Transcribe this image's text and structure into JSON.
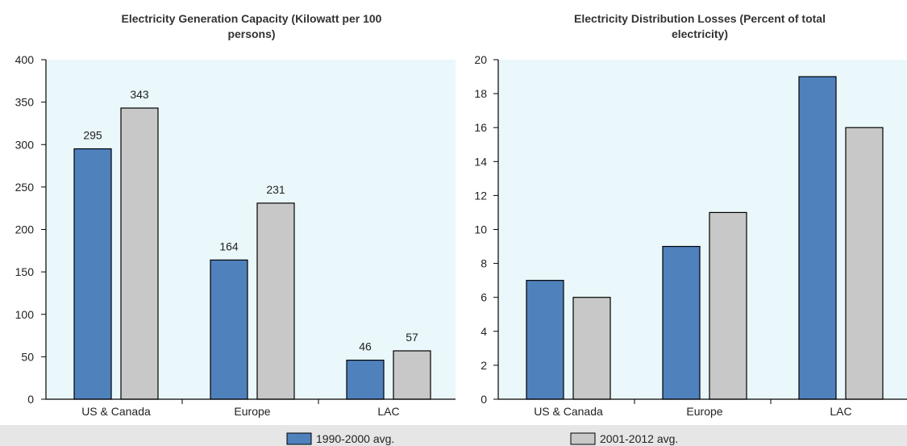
{
  "colors": {
    "series_1": "#4f81bd",
    "series_2": "#c8c8c8",
    "plot_background": "#eaf8fb",
    "legend_background": "#e6e6e6",
    "axis": "#000000"
  },
  "legend": {
    "items": [
      {
        "label": "1990-2000 avg.",
        "color": "#4f81bd"
      },
      {
        "label": "2001-2012 avg.",
        "color": "#c8c8c8"
      }
    ],
    "placement": "bottom"
  },
  "chart_data": [
    {
      "type": "bar",
      "title_lines": [
        "Electricity Generation Capacity (Kilowatt per 100",
        "persons)"
      ],
      "categories": [
        "US & Canada",
        "Europe",
        "LAC"
      ],
      "series": [
        {
          "name": "1990-2000 avg.",
          "values": [
            295,
            164,
            46
          ]
        },
        {
          "name": "2001-2012 avg.",
          "values": [
            343,
            231,
            57
          ]
        }
      ],
      "data_labels": true,
      "ylim": [
        0,
        400
      ],
      "yticks": [
        0,
        50,
        100,
        150,
        200,
        250,
        300,
        350,
        400
      ],
      "xlabel": "",
      "ylabel": "",
      "grid": false
    },
    {
      "type": "bar",
      "title_lines": [
        "Electricity Distribution Losses (Percent of total",
        "electricity)"
      ],
      "categories": [
        "US & Canada",
        "Europe",
        "LAC"
      ],
      "series": [
        {
          "name": "1990-2000 avg.",
          "values": [
            7,
            9,
            19
          ]
        },
        {
          "name": "2001-2012 avg.",
          "values": [
            6,
            11,
            16
          ]
        }
      ],
      "data_labels": false,
      "ylim": [
        0,
        20
      ],
      "yticks": [
        0,
        2,
        4,
        6,
        8,
        10,
        12,
        14,
        16,
        18,
        20
      ],
      "xlabel": "",
      "ylabel": "",
      "grid": false
    }
  ]
}
